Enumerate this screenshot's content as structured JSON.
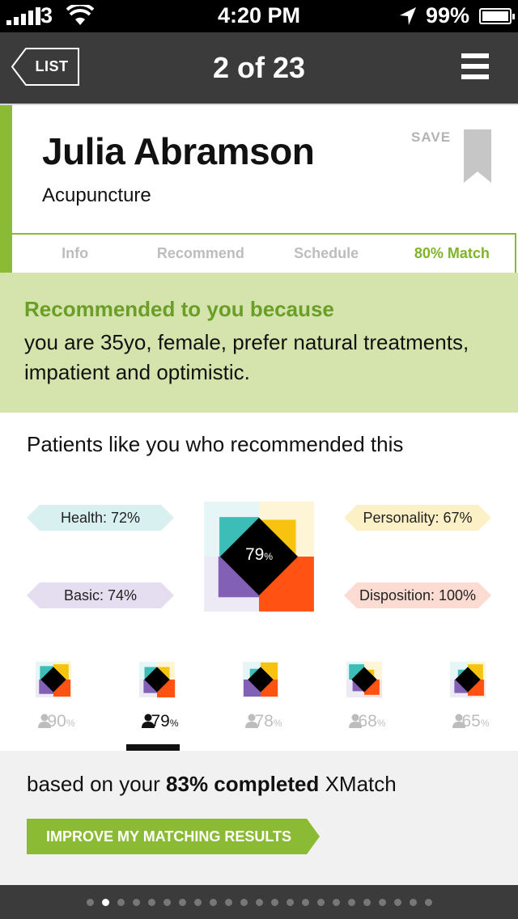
{
  "status_bar": {
    "carrier": "3",
    "time": "4:20 PM",
    "battery": "99%",
    "battery_level": 0.99
  },
  "nav": {
    "back_label": "LIST",
    "title": "2 of 23",
    "menu_icon": "hamburger-icon"
  },
  "profile": {
    "name": "Julia Abramson",
    "specialty": "Acupuncture",
    "save_label": "SAVE",
    "accent": "#8bbb34"
  },
  "tabs": [
    {
      "label": "Info",
      "active": false
    },
    {
      "label": "Recommend",
      "active": false
    },
    {
      "label": "Schedule",
      "active": false
    },
    {
      "label": "80% Match",
      "active": true
    }
  ],
  "recommendation": {
    "heading": "Recommended to you because",
    "body": "you are 35yo, female, prefer natural treatments, impatient and optimistic."
  },
  "patients": {
    "title": "Patients like you who recommended this",
    "overall": "79",
    "overall_unit": "%",
    "labels": {
      "health": "Health: 72%",
      "personality": "Personality: 67%",
      "basic": "Basic: 74%",
      "disposition": "Disposition: 100%"
    },
    "colors": {
      "health": "#3dbdb7",
      "personality": "#f7c30f",
      "basic": "#8160b6",
      "disposition": "#ff5213"
    },
    "levels": {
      "health": 0.72,
      "personality": 0.67,
      "basic": 0.74,
      "disposition": 1.0
    },
    "thumbnails": [
      {
        "pct": "90",
        "unit": "%",
        "active": false,
        "levels": [
          0.75,
          0.85,
          0.8,
          0.95
        ]
      },
      {
        "pct": "79",
        "unit": "%",
        "active": true,
        "levels": [
          0.7,
          0.7,
          0.75,
          1.0
        ]
      },
      {
        "pct": "78",
        "unit": "%",
        "active": false,
        "levels": [
          0.6,
          0.95,
          0.95,
          0.95
        ]
      },
      {
        "pct": "68",
        "unit": "%",
        "active": false,
        "levels": [
          0.85,
          0.55,
          0.65,
          0.85
        ]
      },
      {
        "pct": "65",
        "unit": "%",
        "active": false,
        "levels": [
          0.55,
          0.85,
          0.75,
          0.9
        ]
      }
    ]
  },
  "footer": {
    "based_prefix": "based on your",
    "based_bold": "83% completed",
    "based_suffix": "XMatch",
    "improve_label": "IMPROVE MY MATCHING RESULTS"
  },
  "pager": {
    "total": 23,
    "current": 2
  }
}
